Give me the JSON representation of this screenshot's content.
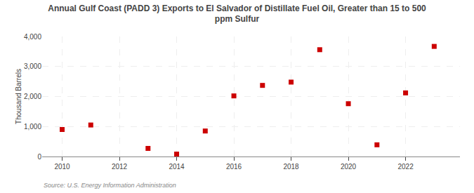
{
  "chart_data": {
    "type": "scatter",
    "title": "Annual Gulf Coast (PADD 3) Exports to El Salvador of Distillate Fuel Oil, Greater than 15 to 500\nppm Sulfur",
    "ylabel": "Thousand Barrels",
    "annotations": [
      "Source: U.S. Energy Information Administration"
    ],
    "x": [
      2010,
      2011,
      2013,
      2014,
      2015,
      2016,
      2017,
      2018,
      2019,
      2020,
      2021,
      2022,
      2023
    ],
    "values": [
      900,
      1050,
      270,
      80,
      850,
      2020,
      2370,
      2480,
      3560,
      1760,
      390,
      2120,
      3670
    ],
    "color": "#cc0000",
    "marker": "square",
    "xlim": [
      2009.3,
      2023.9
    ],
    "xticks": [
      2010,
      2012,
      2014,
      2016,
      2018,
      2020,
      2022
    ],
    "ylim": [
      0,
      4000
    ],
    "yticks": [
      0,
      {
        "value": 1000,
        "label": "1,000"
      },
      {
        "value": 2000,
        "label": "2,000"
      },
      {
        "value": 3000,
        "label": "3,000"
      },
      {
        "value": 4000,
        "label": "4,000"
      }
    ],
    "grid": true
  }
}
